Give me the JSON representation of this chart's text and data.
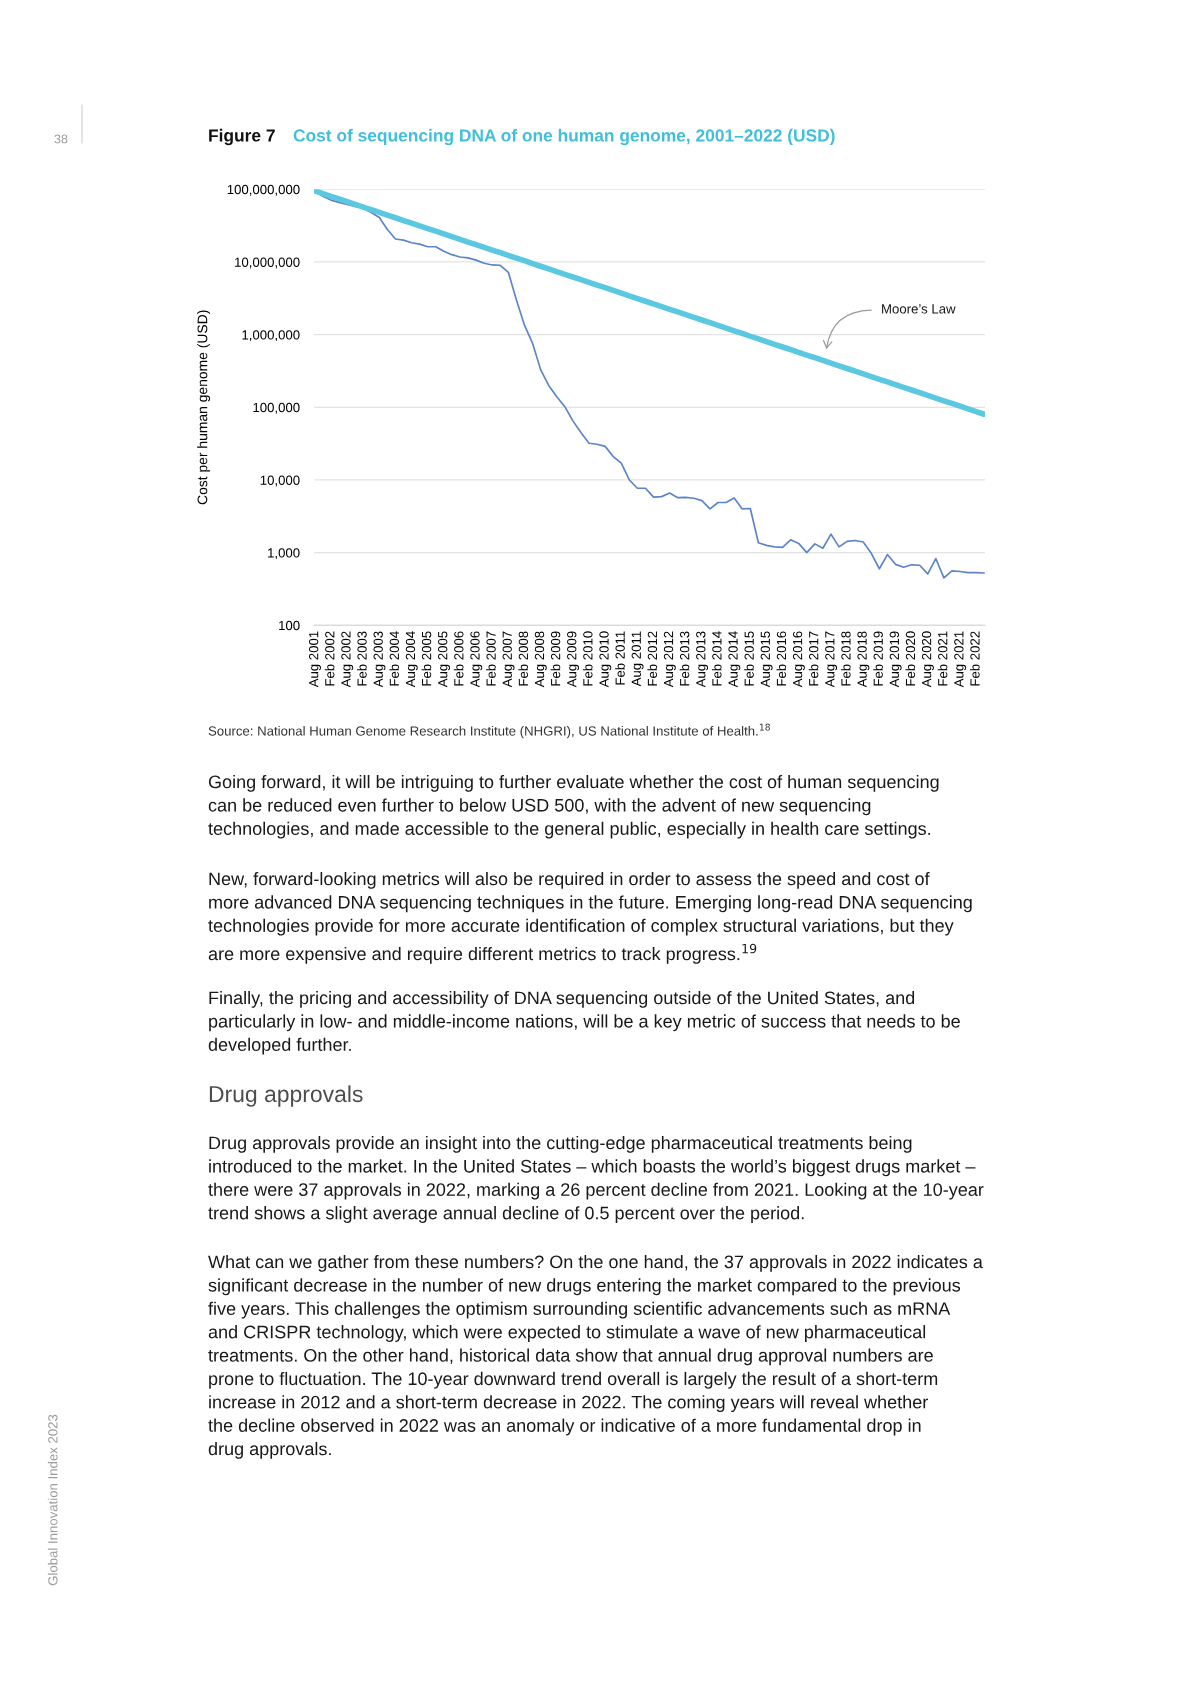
{
  "chart_data": {
    "type": "line",
    "title": "Cost of sequencing DNA of one human genome, 2001–2022 (USD)",
    "ylabel": "Cost per human genome (USD)",
    "categories": [
      "Aug 2001",
      null,
      "Feb 2002",
      null,
      "Aug 2002",
      null,
      "Feb 2003",
      null,
      "Aug 2003",
      null,
      "Feb 2004",
      null,
      "Aug 2004",
      null,
      "Feb 2005",
      null,
      "Aug 2005",
      null,
      "Feb 2006",
      null,
      "Aug 2006",
      null,
      "Feb 2007",
      null,
      "Aug 2007",
      null,
      "Feb 2008",
      null,
      "Aug 2008",
      null,
      "Feb 2009",
      null,
      "Aug 2009",
      null,
      "Feb 2010",
      null,
      "Aug 2010",
      null,
      "Feb 2011",
      null,
      "Aug 2011",
      null,
      "Feb 2012",
      null,
      "Aug 2012",
      null,
      "Feb 2013",
      null,
      "Aug 2013",
      null,
      "Feb 2014",
      null,
      "Aug 2014",
      null,
      "Feb 2015",
      null,
      "Aug 2015",
      null,
      "Feb 2016",
      null,
      "Aug 2016",
      null,
      "Feb 2017",
      null,
      "Aug 2017",
      null,
      "Feb 2018",
      null,
      "Aug 2018",
      null,
      "Feb 2019",
      null,
      "Aug 2019",
      null,
      "Feb 2020",
      null,
      "Aug 2020",
      null,
      "Feb 2021",
      null,
      "Aug 2021",
      null,
      "Feb 2022",
      null
    ],
    "series": [
      {
        "color": "#5b84c9",
        "values": [
          95000000,
          80000000,
          71000000,
          66000000,
          62000000,
          58000000,
          55000000,
          48000000,
          41000000,
          28000000,
          20700000,
          20000000,
          18400000,
          17600000,
          16200000,
          16200000,
          14000000,
          12600000,
          11700000,
          11400000,
          10600000,
          9600000,
          9100000,
          9000000,
          7200000,
          3000000,
          1350000,
          760000,
          330000,
          200000,
          140000,
          102000,
          65000,
          45000,
          32000,
          31000,
          29000,
          21000,
          17000,
          10000,
          7700,
          7700,
          5800,
          5900,
          6600,
          5700,
          5750,
          5600,
          5200,
          4000,
          4900,
          4900,
          5650,
          4000,
          4050,
          1370,
          1260,
          1200,
          1180,
          1500,
          1340,
          1000,
          1320,
          1150,
          1800,
          1200,
          1430,
          1470,
          1400,
          980,
          600,
          940,
          690,
          630,
          680,
          670,
          510,
          830,
          450,
          560,
          550,
          530,
          530,
          525
        ]
      },
      {
        "color": "#5bc8e0",
        "values": [
          95000000,
          87300000,
          80200000,
          73600000,
          67600000,
          62100000,
          57000000,
          52400000,
          48100000,
          44200000,
          40600000,
          37200000,
          34200000,
          31400000,
          28800000,
          26500000,
          24300000,
          22300000,
          20500000,
          18800000,
          17300000,
          15900000,
          14600000,
          13400000,
          12300000,
          11300000,
          10400000,
          9500000,
          8730000,
          8020000,
          7360000,
          6760000,
          6210000,
          5700000,
          5240000,
          4810000,
          4420000,
          4060000,
          3720000,
          3420000,
          3140000,
          2880000,
          2650000,
          2430000,
          2230000,
          2050000,
          1880000,
          1730000,
          1590000,
          1460000,
          1340000,
          1230000,
          1130000,
          1040000,
          950000,
          873000,
          802000,
          736000,
          676000,
          621000,
          570000,
          524000,
          481000,
          442000,
          406000,
          372000,
          342000,
          314000,
          288000,
          265000,
          243000,
          223000,
          205000,
          188000,
          173000,
          159000,
          146000,
          134000,
          123000,
          113000,
          104000,
          95000,
          87300,
          80200
        ]
      }
    ],
    "log": true,
    "ylim": [
      100,
      100000000
    ],
    "yticks": [
      {
        "value": 100,
        "label": "100"
      },
      {
        "value": 1000,
        "label": "1,000"
      },
      {
        "value": 10000,
        "label": "10,000"
      },
      {
        "value": 100000,
        "label": "100,000"
      },
      {
        "value": 1000000,
        "label": "1,000,000"
      },
      {
        "value": 10000000,
        "label": "10,000,000"
      },
      {
        "value": 100000000,
        "label": "100,000,000"
      }
    ],
    "grid": "y",
    "annotations": [
      "38",
      "Figure 7",
      "Moore’s Law",
      "Source: National Human Genome Research Institute (NHGRI), US National Institute of Health.$^{18}$",
      "Going forward, it will be intriguing to further evaluate whether the cost of human sequencing\ncan be reduced even further to below USD 500, with the advent of new sequencing\ntechnologies, and made accessible to the general public, especially in health care settings.",
      "New, forward-looking metrics will also be required in order to assess the speed and cost of\nmore advanced DNA sequencing techniques in the future. Emerging long-read DNA sequencing\ntechnologies provide for more accurate identification of complex structural variations, but they\nare more expensive and require different metrics to track progress.$^{19}$",
      "Finally, the pricing and accessibility of DNA sequencing outside of the United States, and\nparticularly in low- and middle-income nations, will be a key metric of success that needs to be\ndeveloped further.",
      "Drug approvals",
      "Drug approvals provide an insight into the cutting-edge pharmaceutical treatments being\nintroduced to the market. In the United States – which boasts the world’s biggest drugs market –\nthere were 37 approvals in 2022, marking a 26 percent decline from 2021. Looking at the 10-year\ntrend shows a slight average annual decline of 0.5 percent over the period.",
      "What can we gather from these numbers? On the one hand, the 37 approvals in 2022 indicates a\nsignificant decrease in the number of new drugs entering the market compared to the previous\nfive years. This challenges the optimism surrounding scientific advancements such as mRNA\nand CRISPR technology, which were expected to stimulate a wave of new pharmaceutical\ntreatments. On the other hand, historical data show that annual drug approval numbers are\nprone to fluctuation. The 10-year downward trend overall is largely the result of a short-term\nincrease in 2012 and a short-term decrease in 2022. The coming years will reveal whether\nthe decline observed in 2022 was an anomaly or indicative of a more fundamental drop in\ndrug approvals.",
      "Global Innovation Index 2023"
    ]
  }
}
